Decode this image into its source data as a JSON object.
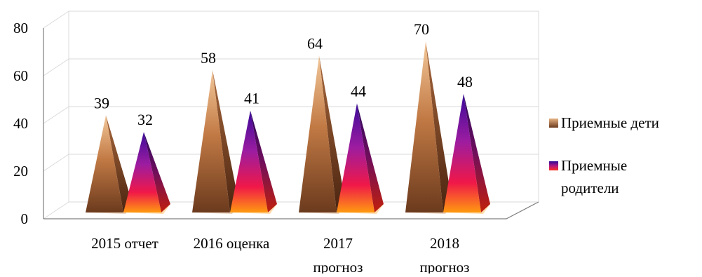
{
  "chart_data": {
    "type": "bar",
    "style": "3d-pyramid",
    "categories": [
      [
        "2015 отчет"
      ],
      [
        "2016 оценка"
      ],
      [
        "2017",
        "прогноз"
      ],
      [
        "2018",
        "прогноз"
      ]
    ],
    "series": [
      {
        "name": "Приемные дети",
        "values": [
          39,
          58,
          64,
          70
        ],
        "color": "#b5693a"
      },
      {
        "name": "Приемные родители",
        "values": [
          32,
          41,
          44,
          48
        ],
        "color": "#8b1a7e"
      }
    ],
    "ylim": [
      0,
      80
    ],
    "yticks": [
      0,
      20,
      40,
      60,
      80
    ],
    "grid": true,
    "data_labels": true,
    "legend": {
      "position": "right",
      "entries": [
        {
          "lines": [
            "Приемные дети"
          ]
        },
        {
          "lines": [
            "Приемные",
            "родители"
          ]
        }
      ]
    }
  }
}
